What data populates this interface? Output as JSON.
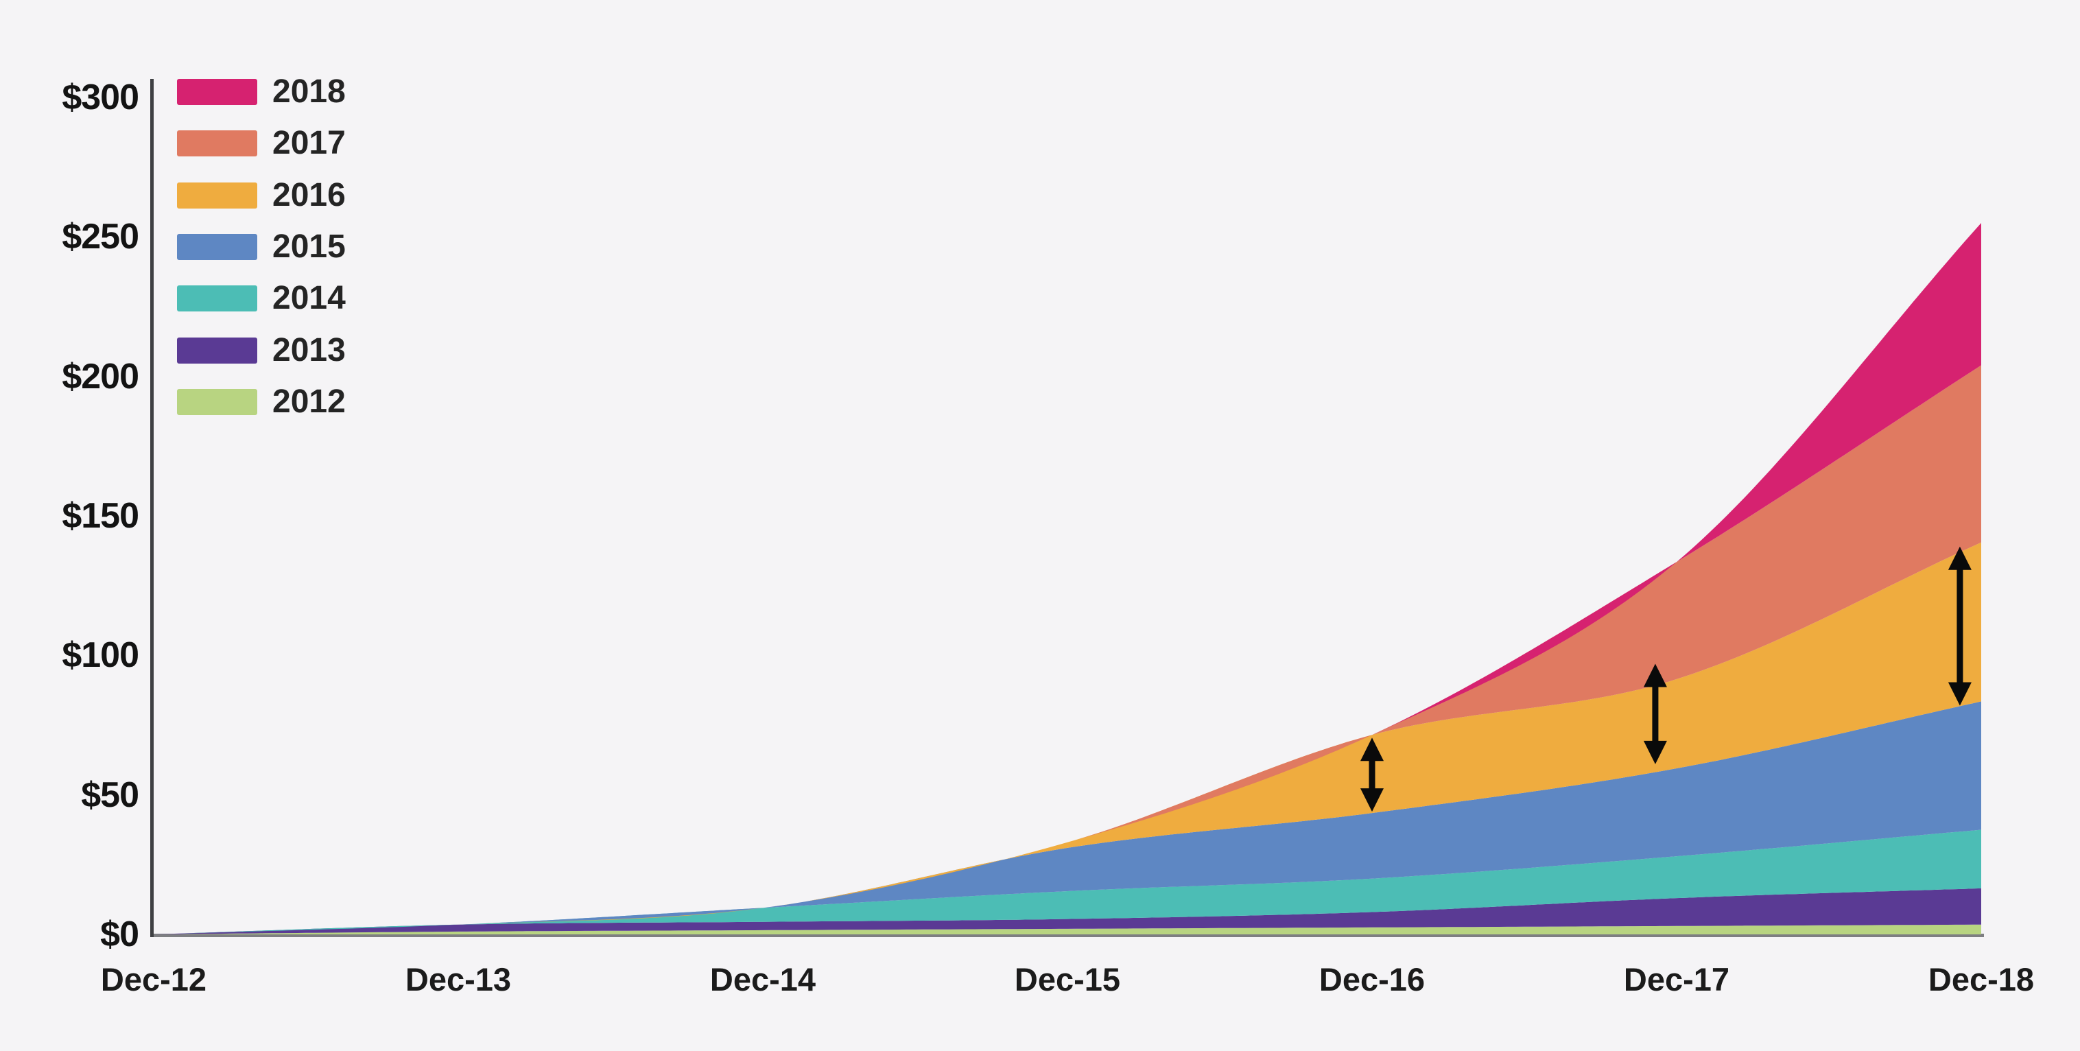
{
  "background_color": "#F5F4F6",
  "axis": {
    "y_ticks": [
      {
        "label": "$300",
        "value": 300
      },
      {
        "label": "$250",
        "value": 250
      },
      {
        "label": "$200",
        "value": 200
      },
      {
        "label": "$150",
        "value": 150
      },
      {
        "label": "$100",
        "value": 100
      },
      {
        "label": "$50",
        "value": 50
      },
      {
        "label": "$0",
        "value": 0
      }
    ],
    "x_ticks": [
      "Dec-12",
      "Dec-13",
      "Dec-14",
      "Dec-15",
      "Dec-16",
      "Dec-17",
      "Dec-18"
    ],
    "vertical_axis_color": "#3F4043",
    "horizontal_axis_color": "#7E7F82"
  },
  "legend": [
    {
      "label": "2018",
      "color": "#D62270"
    },
    {
      "label": "2017",
      "color": "#E07A61"
    },
    {
      "label": "2016",
      "color": "#EFAC3F"
    },
    {
      "label": "2015",
      "color": "#5E87C3"
    },
    {
      "label": "2014",
      "color": "#4CBDB5"
    },
    {
      "label": "2013",
      "color": "#5A3A94"
    },
    {
      "label": "2012",
      "color": "#B8D481"
    }
  ],
  "chart_data": {
    "type": "area",
    "stacked": true,
    "title": "",
    "categories": [
      "Dec-12",
      "Dec-13",
      "Dec-14",
      "Dec-15",
      "Dec-16",
      "Dec-17",
      "Dec-18"
    ],
    "series": [
      {
        "name": "2012",
        "color": "#B8D481",
        "values": [
          0,
          1,
          1.5,
          2,
          2.5,
          3,
          3.5
        ]
      },
      {
        "name": "2013",
        "color": "#5A3A94",
        "values": [
          0,
          2.5,
          3,
          3.5,
          5.5,
          10,
          13
        ]
      },
      {
        "name": "2014",
        "color": "#4CBDB5",
        "values": [
          0,
          0,
          5,
          10,
          12,
          15,
          21
        ]
      },
      {
        "name": "2015",
        "color": "#5E87C3",
        "values": [
          0,
          0,
          0,
          15.5,
          23.5,
          31.5,
          46
        ]
      },
      {
        "name": "2016",
        "color": "#EFAC3F",
        "values": [
          0,
          0,
          0,
          2,
          28,
          32,
          57
        ]
      },
      {
        "name": "2017",
        "color": "#E07A61",
        "values": [
          0,
          0,
          0,
          0,
          0,
          42,
          63.5
        ]
      },
      {
        "name": "2018",
        "color": "#D62270",
        "values": [
          0,
          0,
          0,
          0,
          0,
          0,
          51
        ]
      }
    ],
    "ylim": [
      0,
      300
    ],
    "y_unit": "$",
    "grid": false,
    "legend_position": "top-left",
    "annotations": [
      {
        "type": "double-arrow",
        "near": "Dec-16",
        "x_index": 4.0,
        "from_value": 44,
        "to_value": 70.5,
        "color": "#0A0A0A"
      },
      {
        "type": "double-arrow",
        "near": "Dec-17",
        "x_index": 4.93,
        "from_value": 61,
        "to_value": 97,
        "color": "#0A0A0A"
      },
      {
        "type": "double-arrow",
        "near": "Dec-18",
        "x_index": 5.93,
        "from_value": 82,
        "to_value": 139,
        "color": "#0A0A0A"
      }
    ]
  }
}
